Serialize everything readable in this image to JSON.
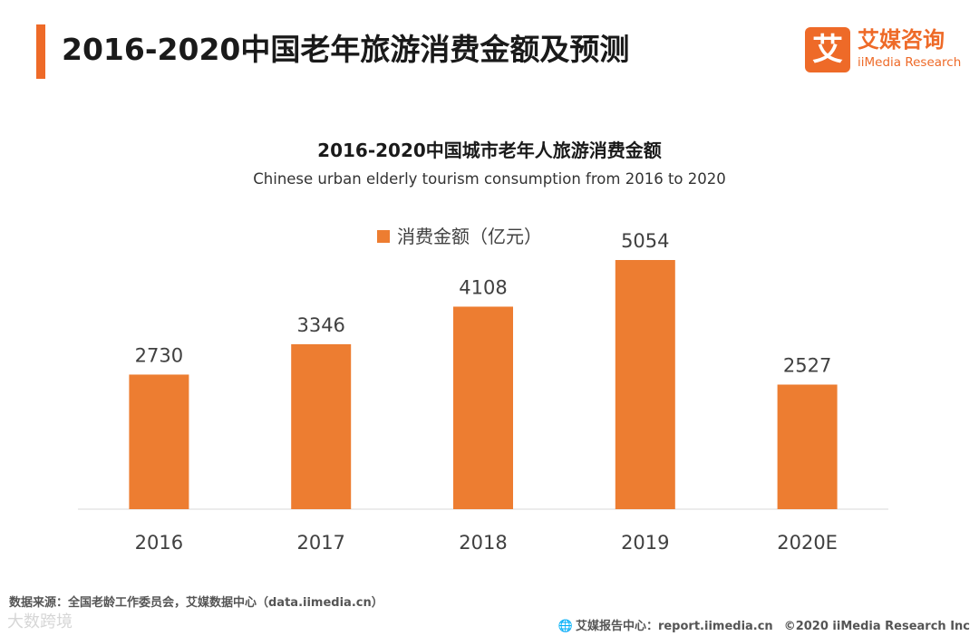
{
  "header": {
    "title": "2016-2020中国老年旅游消费金额及预测"
  },
  "logo": {
    "mark": "艾",
    "name_cn": "艾媒咨询",
    "name_en": "iiMedia Research"
  },
  "chart_data": {
    "type": "bar",
    "title": "2016-2020中国城市老年人旅游消费金额",
    "subtitle": "Chinese urban elderly tourism consumption from 2016 to 2020",
    "categories": [
      "2016",
      "2017",
      "2018",
      "2019",
      "2020E"
    ],
    "series": [
      {
        "name": "消费金额（亿元）",
        "values": [
          2730,
          3346,
          4108,
          5054,
          2527
        ],
        "color": "#ed7d31"
      }
    ],
    "data_labels": [
      "2730",
      "3346",
      "4108",
      "5054",
      "2527"
    ],
    "xlabel": "",
    "ylabel": "",
    "ylim": [
      0,
      5500
    ],
    "grid": false,
    "legend": "top-center"
  },
  "footer": {
    "source": "数据来源：全国老龄工作委员会，艾媒数据中心（data.iimedia.cn）",
    "watermark": "大数跨境",
    "report_center": "艾媒报告中心：report.iimedia.cn",
    "copyright": "©2020  iiMedia Research  Inc"
  }
}
